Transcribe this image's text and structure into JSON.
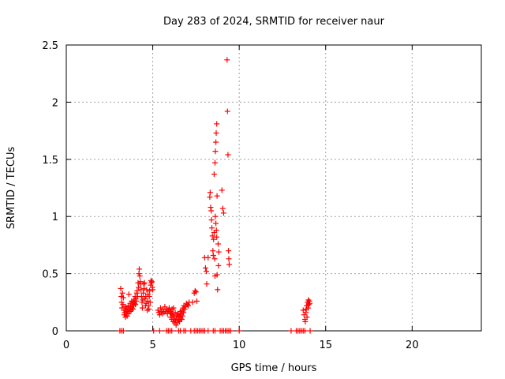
{
  "chart_data": {
    "type": "scatter",
    "title": "Day 283 of 2024, SRMTID for receiver naur",
    "xlabel": "GPS time / hours",
    "ylabel": "SRMTID / TECUs",
    "xlim": [
      0,
      24
    ],
    "ylim": [
      0,
      2.5
    ],
    "xticks": [
      0,
      5,
      10,
      15,
      20
    ],
    "yticks": [
      0,
      0.5,
      1,
      1.5,
      2,
      2.5
    ],
    "grid": true,
    "marker": "+",
    "colors": {
      "points": "#ff0000",
      "grid": "#a0a0a0"
    },
    "series": [
      {
        "points": [
          [
            3.15,
            0.37
          ],
          [
            3.18,
            0.3
          ],
          [
            3.2,
            0.25
          ],
          [
            3.22,
            0.2
          ],
          [
            3.25,
            0.33
          ],
          [
            3.28,
            0.23
          ],
          [
            3.3,
            0.29
          ],
          [
            3.33,
            0.18
          ],
          [
            3.35,
            0.14
          ],
          [
            3.38,
            0.16
          ],
          [
            3.4,
            0.21
          ],
          [
            3.42,
            0.12
          ],
          [
            3.45,
            0.18
          ],
          [
            3.48,
            0.15
          ],
          [
            3.5,
            0.2
          ],
          [
            3.52,
            0.13
          ],
          [
            3.55,
            0.17
          ],
          [
            3.58,
            0.22
          ],
          [
            3.6,
            0.15
          ],
          [
            3.62,
            0.32
          ],
          [
            3.65,
            0.19
          ],
          [
            3.68,
            0.17
          ],
          [
            3.7,
            0.24
          ],
          [
            3.72,
            0.21
          ],
          [
            3.75,
            0.18
          ],
          [
            3.78,
            0.26
          ],
          [
            3.8,
            0.2
          ],
          [
            3.82,
            0.23
          ],
          [
            3.85,
            0.19
          ],
          [
            3.88,
            0.25
          ],
          [
            3.9,
            0.22
          ],
          [
            3.92,
            0.27
          ],
          [
            3.95,
            0.24
          ],
          [
            3.98,
            0.3
          ],
          [
            4.0,
            0.23
          ],
          [
            4.02,
            0.28
          ],
          [
            4.05,
            0.26
          ],
          [
            4.08,
            0.33
          ],
          [
            4.1,
            0.35
          ],
          [
            4.12,
            0.3
          ],
          [
            4.15,
            0.42
          ],
          [
            4.18,
            0.38
          ],
          [
            4.2,
            0.5
          ],
          [
            4.22,
            0.54
          ],
          [
            4.25,
            0.48
          ],
          [
            4.28,
            0.43
          ],
          [
            4.3,
            0.41
          ],
          [
            4.32,
            0.36
          ],
          [
            4.35,
            0.3
          ],
          [
            4.38,
            0.25
          ],
          [
            4.4,
            0.2
          ],
          [
            4.42,
            0.27
          ],
          [
            4.45,
            0.33
          ],
          [
            4.48,
            0.41
          ],
          [
            4.5,
            0.37
          ],
          [
            4.52,
            0.42
          ],
          [
            4.55,
            0.28
          ],
          [
            4.58,
            0.22
          ],
          [
            4.6,
            0.3
          ],
          [
            4.62,
            0.24
          ],
          [
            4.65,
            0.36
          ],
          [
            4.68,
            0.18
          ],
          [
            4.7,
            0.26
          ],
          [
            4.72,
            0.32
          ],
          [
            4.75,
            0.22
          ],
          [
            4.78,
            0.19
          ],
          [
            4.8,
            0.3
          ],
          [
            4.82,
            0.35
          ],
          [
            4.85,
            0.25
          ],
          [
            4.88,
            0.4
          ],
          [
            4.9,
            0.44
          ],
          [
            4.92,
            0.42
          ],
          [
            4.95,
            0.43
          ],
          [
            4.98,
            0.38
          ],
          [
            5.0,
            0.36
          ],
          [
            5.3,
            0.18
          ],
          [
            5.35,
            0.16
          ],
          [
            5.4,
            0.14
          ],
          [
            5.45,
            0.2
          ],
          [
            5.5,
            0.17
          ],
          [
            5.55,
            0.15
          ],
          [
            5.6,
            0.19
          ],
          [
            5.65,
            0.16
          ],
          [
            5.7,
            0.21
          ],
          [
            5.75,
            0.17
          ],
          [
            5.8,
            0.19
          ],
          [
            5.85,
            0.15
          ],
          [
            5.9,
            0.18
          ],
          [
            5.95,
            0.2
          ],
          [
            6.0,
            0.16
          ],
          [
            6.02,
            0.12
          ],
          [
            6.05,
            0.17
          ],
          [
            6.08,
            0.15
          ],
          [
            6.1,
            0.1
          ],
          [
            6.12,
            0.19
          ],
          [
            6.15,
            0.14
          ],
          [
            6.18,
            0.08
          ],
          [
            6.2,
            0.2
          ],
          [
            6.22,
            0.13
          ],
          [
            6.25,
            0.11
          ],
          [
            6.28,
            0.07
          ],
          [
            6.3,
            0.16
          ],
          [
            6.32,
            0.09
          ],
          [
            6.35,
            0.05
          ],
          [
            6.38,
            0.13
          ],
          [
            6.4,
            0.1
          ],
          [
            6.42,
            0.07
          ],
          [
            6.45,
            0.15
          ],
          [
            6.48,
            0.12
          ],
          [
            6.5,
            0.09
          ],
          [
            6.52,
            0.14
          ],
          [
            6.55,
            0.08
          ],
          [
            6.58,
            0.13
          ],
          [
            6.6,
            0.17
          ],
          [
            6.62,
            0.11
          ],
          [
            6.65,
            0.15
          ],
          [
            6.68,
            0.1
          ],
          [
            6.7,
            0.18
          ],
          [
            6.72,
            0.13
          ],
          [
            6.75,
            0.2
          ],
          [
            6.78,
            0.16
          ],
          [
            6.8,
            0.22
          ],
          [
            6.85,
            0.19
          ],
          [
            6.9,
            0.21
          ],
          [
            6.95,
            0.24
          ],
          [
            7.0,
            0.23
          ],
          [
            7.05,
            0.22
          ],
          [
            7.1,
            0.25
          ],
          [
            7.3,
            0.25
          ],
          [
            7.4,
            0.33
          ],
          [
            7.45,
            0.35
          ],
          [
            7.5,
            0.34
          ],
          [
            7.55,
            0.26
          ],
          [
            8.0,
            0.64
          ],
          [
            8.05,
            0.55
          ],
          [
            8.1,
            0.52
          ],
          [
            8.12,
            0.41
          ],
          [
            8.2,
            0.64
          ],
          [
            8.3,
            1.17
          ],
          [
            8.32,
            1.21
          ],
          [
            8.35,
            1.08
          ],
          [
            8.38,
            1.05
          ],
          [
            8.4,
            0.97
          ],
          [
            8.42,
            0.9
          ],
          [
            8.45,
            0.83
          ],
          [
            8.48,
            0.7
          ],
          [
            8.5,
            0.66
          ],
          [
            8.52,
            0.8
          ],
          [
            8.55,
            0.86
          ],
          [
            8.58,
            0.63
          ],
          [
            8.6,
            0.48
          ],
          [
            8.62,
            1.0
          ],
          [
            8.65,
            0.94
          ],
          [
            8.68,
            0.88
          ],
          [
            8.7,
            0.82
          ],
          [
            8.72,
            0.49
          ],
          [
            8.75,
            0.36
          ],
          [
            8.78,
            0.76
          ],
          [
            8.8,
            0.57
          ],
          [
            8.82,
            0.69
          ],
          [
            8.55,
            1.37
          ],
          [
            8.6,
            1.47
          ],
          [
            8.62,
            1.57
          ],
          [
            8.65,
            1.65
          ],
          [
            8.67,
            1.73
          ],
          [
            8.7,
            1.81
          ],
          [
            8.72,
            1.18
          ],
          [
            9.0,
            1.23
          ],
          [
            9.05,
            1.07
          ],
          [
            9.1,
            1.03
          ],
          [
            9.3,
            2.37
          ],
          [
            9.32,
            1.92
          ],
          [
            9.35,
            1.54
          ],
          [
            9.38,
            0.7
          ],
          [
            9.4,
            0.63
          ],
          [
            9.42,
            0.58
          ],
          [
            13.7,
            0.18
          ],
          [
            13.75,
            0.14
          ],
          [
            13.8,
            0.1
          ],
          [
            13.85,
            0.16
          ],
          [
            13.9,
            0.22
          ],
          [
            13.92,
            0.12
          ],
          [
            13.95,
            0.25
          ],
          [
            13.98,
            0.2
          ],
          [
            14.0,
            0.27
          ],
          [
            14.02,
            0.23
          ],
          [
            14.05,
            0.26
          ],
          [
            14.08,
            0.24
          ],
          [
            13.82,
            0.08
          ],
          [
            13.88,
            0.19
          ],
          [
            3.1,
            0.0
          ],
          [
            3.2,
            0.0
          ],
          [
            3.3,
            0.0
          ],
          [
            5.05,
            0.0
          ],
          [
            5.4,
            0.0
          ],
          [
            5.8,
            0.0
          ],
          [
            5.9,
            0.0
          ],
          [
            6.0,
            0.0
          ],
          [
            6.1,
            0.0
          ],
          [
            6.5,
            0.0
          ],
          [
            6.6,
            0.0
          ],
          [
            6.8,
            0.0
          ],
          [
            6.9,
            0.0
          ],
          [
            7.2,
            0.0
          ],
          [
            7.4,
            0.0
          ],
          [
            7.5,
            0.0
          ],
          [
            7.6,
            0.0
          ],
          [
            7.7,
            0.0
          ],
          [
            7.8,
            0.0
          ],
          [
            7.9,
            0.0
          ],
          [
            8.0,
            0.0
          ],
          [
            8.2,
            0.0
          ],
          [
            8.5,
            0.0
          ],
          [
            8.6,
            0.0
          ],
          [
            8.9,
            0.0
          ],
          [
            9.0,
            0.0
          ],
          [
            9.1,
            0.0
          ],
          [
            9.2,
            0.0
          ],
          [
            9.3,
            0.0
          ],
          [
            9.4,
            0.0
          ],
          [
            9.5,
            0.0
          ],
          [
            10.0,
            0.0
          ],
          [
            13.0,
            0.0
          ],
          [
            13.3,
            0.0
          ],
          [
            13.4,
            0.0
          ],
          [
            13.5,
            0.0
          ],
          [
            13.6,
            0.0
          ],
          [
            13.7,
            0.0
          ],
          [
            13.8,
            0.0
          ],
          [
            14.1,
            0.0
          ]
        ]
      }
    ]
  }
}
